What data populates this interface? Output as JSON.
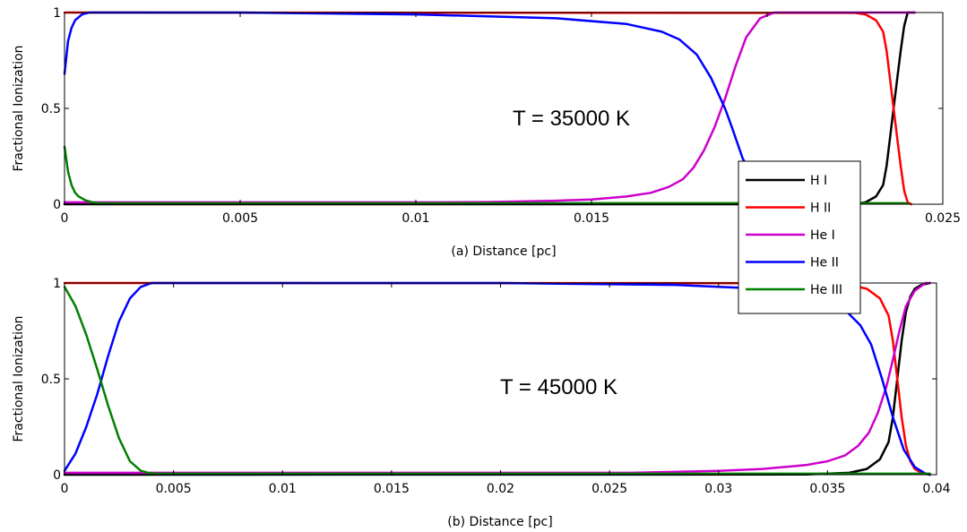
{
  "chart_data": [
    {
      "type": "line",
      "xlabel": "(a) Distance [pc]",
      "ylabel": "Fractional Ionization",
      "annotation": "T = 35000 K",
      "xlim": [
        0,
        0.025
      ],
      "ylim": [
        0,
        1
      ],
      "xticks": [
        {
          "value": 0,
          "label": "0"
        },
        {
          "value": 0.005,
          "label": "0.005"
        },
        {
          "value": 0.01,
          "label": "0.01"
        },
        {
          "value": 0.015,
          "label": "0.015"
        },
        {
          "value": 0.02,
          "label": "0.02"
        },
        {
          "value": 0.025,
          "label": "0.025"
        }
      ],
      "yticks": [
        {
          "value": 0,
          "label": "0"
        },
        {
          "value": 0.5,
          "label": "0.5"
        },
        {
          "value": 1,
          "label": "1"
        }
      ],
      "grid": false,
      "series": [
        {
          "name": "H I",
          "color": "#000000",
          "x": [
            0,
            0.02,
            0.0225,
            0.0228,
            0.0231,
            0.0233,
            0.0234,
            0.0235,
            0.0236,
            0.0237,
            0.0238,
            0.0239,
            0.024,
            0.0242
          ],
          "y": [
            0,
            0,
            0.002,
            0.01,
            0.04,
            0.1,
            0.2,
            0.35,
            0.5,
            0.65,
            0.8,
            0.93,
            1,
            1
          ]
        },
        {
          "name": "H II",
          "color": "#ff0000",
          "x": [
            0,
            0.0225,
            0.0228,
            0.0231,
            0.0233,
            0.0234,
            0.0235,
            0.0236,
            0.0237,
            0.0238,
            0.0239,
            0.024,
            0.0241
          ],
          "y": [
            1,
            0.998,
            0.99,
            0.96,
            0.9,
            0.8,
            0.65,
            0.5,
            0.35,
            0.2,
            0.07,
            0.01,
            0
          ]
        },
        {
          "name": "He I",
          "color": "#cc00cc",
          "x": [
            0,
            0.0107,
            0.012,
            0.014,
            0.015,
            0.016,
            0.0167,
            0.0172,
            0.0176,
            0.0179,
            0.0182,
            0.0185,
            0.0188,
            0.0191,
            0.0194,
            0.0198,
            0.0202,
            0.021,
            0.0242
          ],
          "y": [
            0.01,
            0.01,
            0.011,
            0.018,
            0.025,
            0.04,
            0.06,
            0.09,
            0.13,
            0.19,
            0.28,
            0.4,
            0.55,
            0.72,
            0.87,
            0.97,
            1,
            1,
            1
          ]
        },
        {
          "name": "He II",
          "color": "#0000ff",
          "x": [
            0,
            0.0001,
            0.0002,
            0.0003,
            0.0005,
            0.0007,
            0.001,
            0.005,
            0.01,
            0.014,
            0.016,
            0.017,
            0.0175,
            0.018,
            0.0184,
            0.0188,
            0.019,
            0.0193,
            0.0197,
            0.0202
          ],
          "y": [
            0.68,
            0.85,
            0.92,
            0.96,
            0.99,
            1,
            1,
            1,
            0.99,
            0.97,
            0.94,
            0.9,
            0.86,
            0.78,
            0.66,
            0.5,
            0.4,
            0.24,
            0.1,
            0
          ]
        },
        {
          "name": "He III",
          "color": "#008000",
          "x": [
            0,
            0.0001,
            0.0002,
            0.0003,
            0.0004,
            0.0006,
            0.0008,
            0.001,
            0.024
          ],
          "y": [
            0.3,
            0.17,
            0.1,
            0.06,
            0.04,
            0.02,
            0.01,
            0.005,
            0.005
          ]
        }
      ]
    },
    {
      "type": "line",
      "xlabel": "(b) Distance [pc]",
      "ylabel": "Fractional Ionization",
      "annotation": "T = 45000 K",
      "xlim": [
        0,
        0.04
      ],
      "ylim": [
        0,
        1
      ],
      "xticks": [
        {
          "value": 0,
          "label": "0"
        },
        {
          "value": 0.005,
          "label": "0.005"
        },
        {
          "value": 0.01,
          "label": "0.01"
        },
        {
          "value": 0.015,
          "label": "0.015"
        },
        {
          "value": 0.02,
          "label": "0.02"
        },
        {
          "value": 0.025,
          "label": "0.025"
        },
        {
          "value": 0.03,
          "label": "0.03"
        },
        {
          "value": 0.035,
          "label": "0.035"
        },
        {
          "value": 0.04,
          "label": "0.04"
        }
      ],
      "yticks": [
        {
          "value": 0,
          "label": "0"
        },
        {
          "value": 0.5,
          "label": "0.5"
        },
        {
          "value": 1,
          "label": "1"
        }
      ],
      "grid": false,
      "series": [
        {
          "name": "H I",
          "color": "#000000",
          "x": [
            0,
            0.034,
            0.036,
            0.0368,
            0.0374,
            0.0378,
            0.038,
            0.0382,
            0.0384,
            0.0386,
            0.0388,
            0.039,
            0.0393,
            0.0397
          ],
          "y": [
            0,
            0.001,
            0.01,
            0.03,
            0.08,
            0.17,
            0.3,
            0.5,
            0.7,
            0.85,
            0.93,
            0.97,
            0.99,
            1
          ]
        },
        {
          "name": "H II",
          "color": "#ff0000",
          "x": [
            0,
            0.034,
            0.036,
            0.0368,
            0.0374,
            0.0378,
            0.038,
            0.0382,
            0.0384,
            0.0386,
            0.0388,
            0.039,
            0.0393,
            0.0397
          ],
          "y": [
            1,
            0.999,
            0.99,
            0.97,
            0.92,
            0.83,
            0.7,
            0.5,
            0.3,
            0.15,
            0.07,
            0.03,
            0.01,
            0
          ]
        },
        {
          "name": "He I",
          "color": "#cc00cc",
          "x": [
            0,
            0.026,
            0.03,
            0.032,
            0.034,
            0.035,
            0.0358,
            0.0364,
            0.0369,
            0.0373,
            0.0377,
            0.038,
            0.0383,
            0.0386,
            0.039,
            0.0395,
            0.0397
          ],
          "y": [
            0.01,
            0.01,
            0.02,
            0.03,
            0.05,
            0.07,
            0.1,
            0.15,
            0.22,
            0.32,
            0.46,
            0.6,
            0.75,
            0.88,
            0.96,
            1,
            1
          ]
        },
        {
          "name": "He II",
          "color": "#0000ff",
          "x": [
            0,
            0.0005,
            0.001,
            0.0015,
            0.002,
            0.0025,
            0.003,
            0.0035,
            0.004,
            0.01,
            0.02,
            0.028,
            0.032,
            0.034,
            0.035,
            0.0358,
            0.0365,
            0.037,
            0.0375,
            0.038,
            0.0385,
            0.039,
            0.0395,
            0.0397
          ],
          "y": [
            0.02,
            0.11,
            0.25,
            0.42,
            0.62,
            0.8,
            0.92,
            0.98,
            1,
            1,
            1,
            0.99,
            0.97,
            0.94,
            0.91,
            0.86,
            0.78,
            0.68,
            0.5,
            0.3,
            0.13,
            0.04,
            0.005,
            0
          ]
        },
        {
          "name": "He III",
          "color": "#008000",
          "x": [
            0,
            0.0005,
            0.001,
            0.0015,
            0.002,
            0.0025,
            0.003,
            0.0035,
            0.004,
            0.0397
          ],
          "y": [
            0.98,
            0.88,
            0.73,
            0.55,
            0.36,
            0.19,
            0.07,
            0.02,
            0.005,
            0.005
          ]
        }
      ]
    }
  ],
  "legend": {
    "placement": "right, between panels",
    "entries": [
      {
        "label": "H I",
        "color": "#000000"
      },
      {
        "label": "H II",
        "color": "#ff0000"
      },
      {
        "label": "He I",
        "color": "#cc00cc"
      },
      {
        "label": "He II",
        "color": "#0000ff"
      },
      {
        "label": "He III",
        "color": "#008000"
      }
    ]
  }
}
